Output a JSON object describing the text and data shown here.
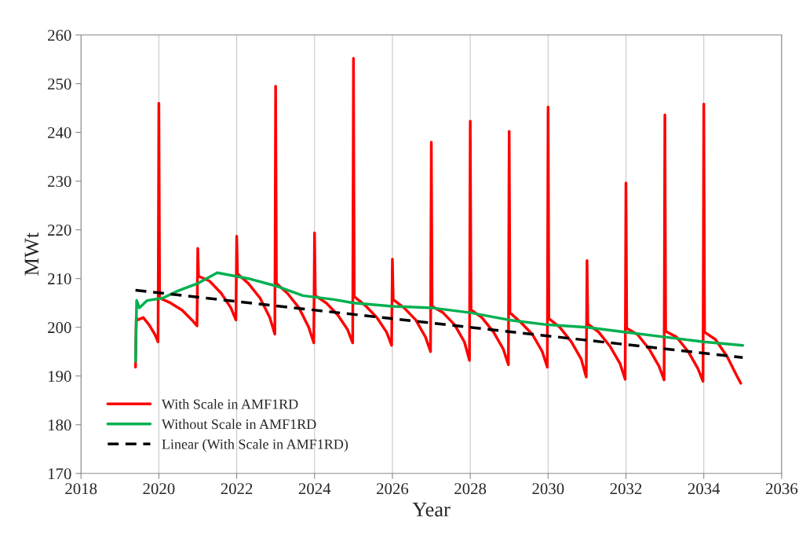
{
  "chart_data": {
    "type": "line",
    "xlabel": "Year",
    "ylabel": "MWt",
    "xlim": [
      2018,
      2036
    ],
    "xticks": [
      2018,
      2020,
      2022,
      2024,
      2026,
      2028,
      2030,
      2032,
      2034,
      2036
    ],
    "ylim": [
      170,
      260
    ],
    "yticks": [
      170,
      180,
      190,
      200,
      210,
      220,
      230,
      240,
      250,
      260
    ],
    "grid": "x",
    "legend": "bottom left",
    "series": [
      {
        "name": "With Scale in AMF1RD",
        "color": "#ff0000",
        "line_style": "solid",
        "x": [
          2019.4,
          2019.42,
          2019.45,
          2019.6,
          2019.75,
          2019.9,
          2019.98,
          2020.0,
          2020.02,
          2020.3,
          2020.6,
          2020.85,
          2020.98,
          2021.0,
          2021.02,
          2021.3,
          2021.6,
          2021.85,
          2021.98,
          2022.0,
          2022.02,
          2022.3,
          2022.6,
          2022.85,
          2022.98,
          2023.0,
          2023.02,
          2023.3,
          2023.6,
          2023.85,
          2023.98,
          2024.0,
          2024.02,
          2024.3,
          2024.6,
          2024.85,
          2024.98,
          2025.0,
          2025.02,
          2025.3,
          2025.6,
          2025.85,
          2025.98,
          2026.0,
          2026.02,
          2026.3,
          2026.6,
          2026.85,
          2026.98,
          2027.0,
          2027.02,
          2027.3,
          2027.6,
          2027.85,
          2027.98,
          2028.0,
          2028.02,
          2028.3,
          2028.6,
          2028.85,
          2028.98,
          2029.0,
          2029.02,
          2029.3,
          2029.6,
          2029.85,
          2029.98,
          2030.0,
          2030.02,
          2030.3,
          2030.6,
          2030.85,
          2030.98,
          2031.0,
          2031.02,
          2031.3,
          2031.6,
          2031.85,
          2031.98,
          2032.0,
          2032.02,
          2032.3,
          2032.6,
          2032.85,
          2032.98,
          2033.0,
          2033.02,
          2033.3,
          2033.6,
          2033.85,
          2033.98,
          2034.0,
          2034.02,
          2034.3,
          2034.6,
          2034.85,
          2034.95
        ],
        "values": [
          191.8,
          202.0,
          201.5,
          202.0,
          200.5,
          198.5,
          197.0,
          246.0,
          206.0,
          205.0,
          203.5,
          201.5,
          200.3,
          216.2,
          210.5,
          209.5,
          207.0,
          204.0,
          201.5,
          218.7,
          211.0,
          209.0,
          206.0,
          202.0,
          198.6,
          249.5,
          209.0,
          207.0,
          204.0,
          200.0,
          196.8,
          219.4,
          206.5,
          205.0,
          202.5,
          199.5,
          196.8,
          255.2,
          206.3,
          204.5,
          202.0,
          199.0,
          196.3,
          214.0,
          205.7,
          204.0,
          201.5,
          198.0,
          195.0,
          238.0,
          204.3,
          203.0,
          200.5,
          197.0,
          193.2,
          242.3,
          203.6,
          202.0,
          199.0,
          195.5,
          192.3,
          240.2,
          203.0,
          201.0,
          198.5,
          195.0,
          191.8,
          245.2,
          201.8,
          200.0,
          197.0,
          193.5,
          189.8,
          213.7,
          200.7,
          199.0,
          196.0,
          192.5,
          189.3,
          229.6,
          199.8,
          198.5,
          195.5,
          192.0,
          189.2,
          243.6,
          199.2,
          198.0,
          195.0,
          191.5,
          188.9,
          245.8,
          199.0,
          197.5,
          194.0,
          190.0,
          188.5
        ]
      },
      {
        "name": "Without Scale in AMF1RD",
        "color": "#00b050",
        "line_style": "solid",
        "x": [
          2019.4,
          2019.43,
          2019.5,
          2019.7,
          2020.1,
          2020.5,
          2021.0,
          2021.5,
          2022.3,
          2023.0,
          2023.7,
          2024.5,
          2025.0,
          2026.0,
          2027.0,
          2028.0,
          2029.0,
          2030.0,
          2031.0,
          2032.0,
          2033.0,
          2034.0,
          2035.0
        ],
        "values": [
          193.0,
          205.5,
          204.0,
          205.5,
          206.0,
          207.5,
          209.0,
          211.2,
          210.0,
          208.5,
          206.5,
          205.7,
          205.0,
          204.3,
          204.0,
          203.0,
          201.5,
          200.5,
          200.0,
          199.0,
          198.0,
          197.0,
          196.3
        ]
      },
      {
        "name": "Linear (With Scale in AMF1RD)",
        "color": "#000000",
        "line_style": "dashed",
        "x": [
          2019.4,
          2035.0
        ],
        "values": [
          207.6,
          193.8
        ]
      }
    ]
  }
}
